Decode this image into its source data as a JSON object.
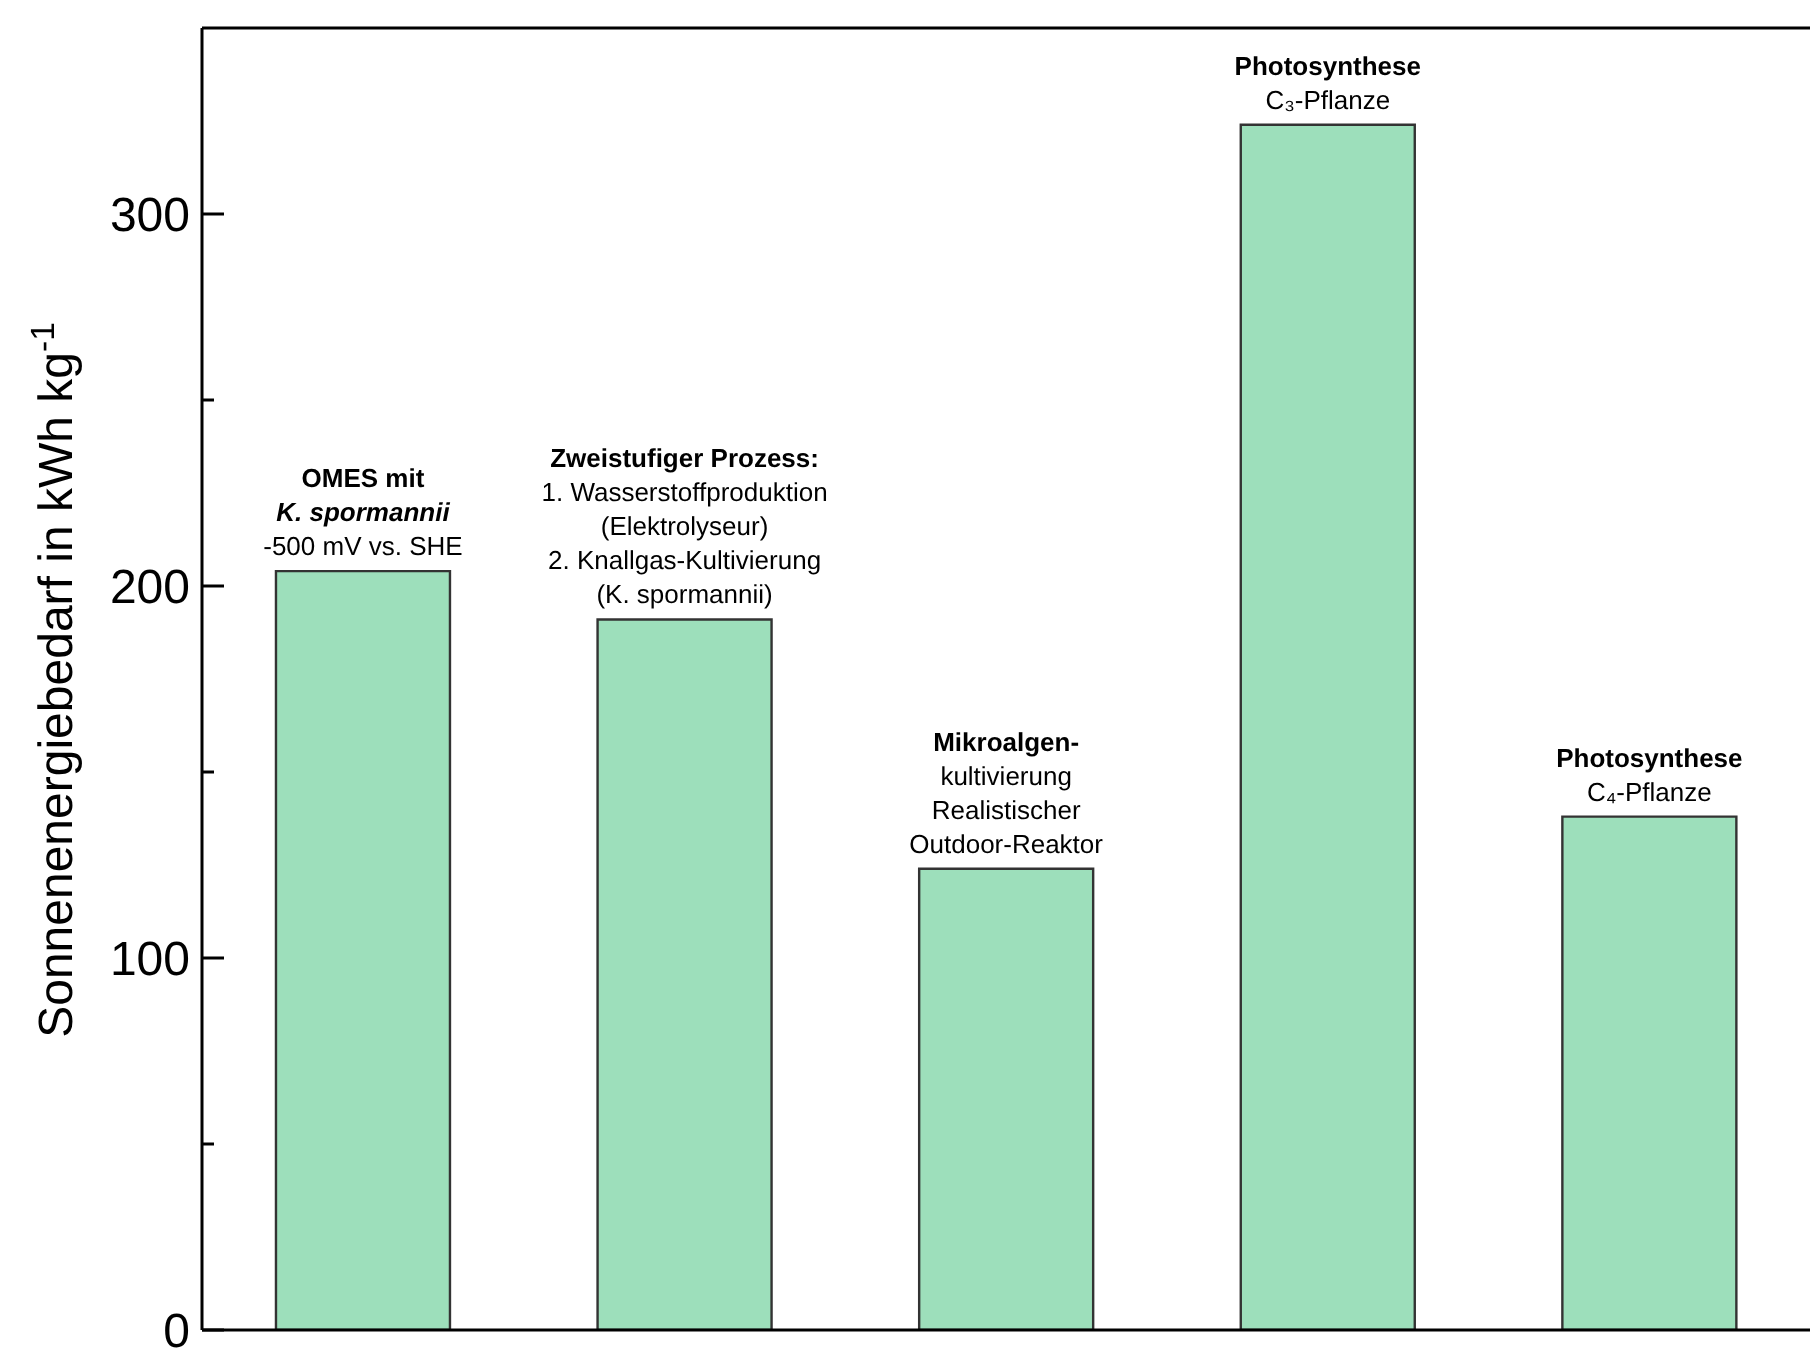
{
  "chart_data": {
    "type": "bar",
    "ylabel": "Sonnenenergiebedarf in kWh kg$^{-1}$",
    "categories": [
      null,
      null,
      null,
      null,
      null
    ],
    "values": [
      204,
      191,
      124,
      324,
      138
    ],
    "color": "#9ddfbb",
    "ylim": [
      0,
      350
    ],
    "yticks": [
      0,
      {
        "value": 50,
        "label": null
      },
      100,
      {
        "value": 150,
        "label": null
      },
      200,
      {
        "value": 250,
        "label": null
      },
      300
    ],
    "grid": false,
    "annotations": [
      "OMES mit\nK. spormannii\n-500 mV vs. SHE",
      "Zweistufiger Prozess:\n1. Wasserstoffproduktion\n(Elektrolyseur)\n2. Knallgas-Kultivierung\n(K. spormannii)",
      "Mikroalgen-\nkultivierung\nRealistischer\nOutdoor-Reaktor",
      "Photosynthese\nC₃-Pflanze",
      "Photosynthese\nC₄-Pflanze"
    ]
  }
}
